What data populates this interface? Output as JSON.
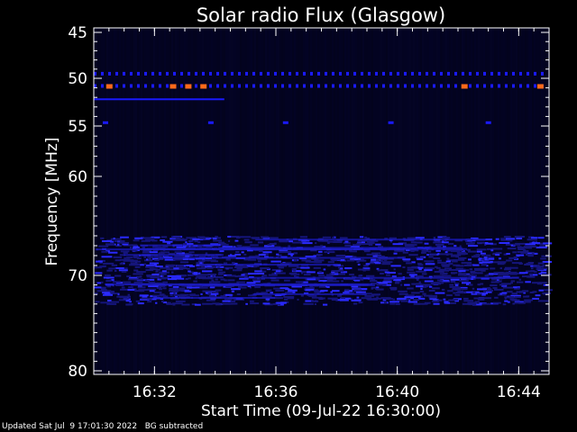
{
  "chart_data": {
    "type": "heatmap",
    "title": "Solar radio Flux (Glasgow)",
    "xlabel": "Start Time (09-Jul-22 16:30:00)",
    "ylabel": "Frequency [MHz]",
    "x_range_minutes": [
      "16:30",
      "16:45"
    ],
    "y_range_mhz": [
      45,
      80
    ],
    "x_ticks": [
      "16:32",
      "16:36",
      "16:40",
      "16:44"
    ],
    "y_ticks": [
      "45",
      "50",
      "55",
      "60",
      "70",
      "80"
    ],
    "colors": {
      "background": "#000000",
      "plot_bg": "#03031a",
      "low": "#1a1aff",
      "high": "#ff6a1a"
    },
    "features": [
      {
        "name": "dashed-line-49.5",
        "freq": 49.5,
        "start": "16:30",
        "end": "16:45",
        "style": "dashed"
      },
      {
        "name": "dashed-line-50.8",
        "freq": 50.8,
        "start": "16:30",
        "end": "16:45",
        "style": "dashed"
      },
      {
        "name": "solid-line-52.2",
        "freq": 52.2,
        "start": "16:30",
        "end": "16:34.3",
        "style": "solid"
      },
      {
        "name": "dash-54.6",
        "freq": 54.6,
        "start": "16:30",
        "end": "16:45",
        "style": "sparse"
      },
      {
        "name": "noise-band-66-73",
        "freq_range": [
          66,
          73
        ],
        "start": "16:30",
        "end": "16:45",
        "style": "noise"
      }
    ]
  },
  "footer": {
    "updated": "Updated Sat Jul  9 17:01:30 2022",
    "bg_note": "BG subtracted"
  }
}
